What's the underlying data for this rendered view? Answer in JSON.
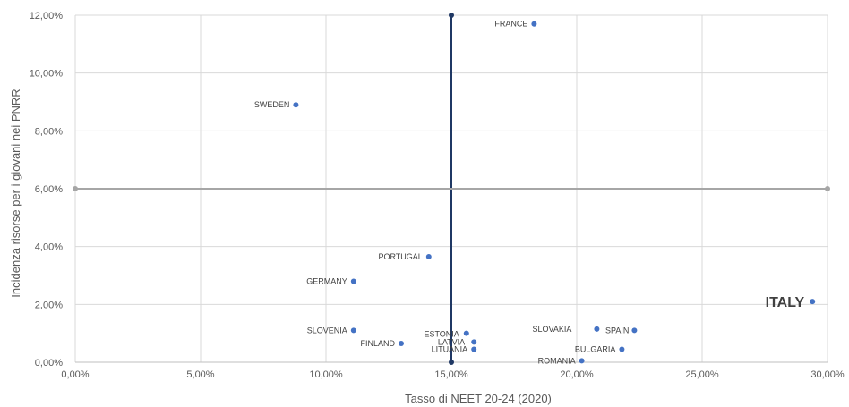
{
  "chart_data": {
    "type": "scatter",
    "xlabel": "Tasso di  NEET 20-24 (2020)",
    "ylabel": "Incidenza risorse per i giovani nei PNRR",
    "xlim": [
      0,
      30
    ],
    "ylim": [
      0,
      12
    ],
    "x_ticks": [
      0,
      5,
      10,
      15,
      20,
      25,
      30
    ],
    "y_ticks": [
      0,
      2,
      4,
      6,
      8,
      10,
      12
    ],
    "x_tick_labels": [
      "0,00%",
      "5,00%",
      "10,00%",
      "15,00%",
      "20,00%",
      "25,00%",
      "30,00%"
    ],
    "y_tick_labels": [
      "0,00%",
      "2,00%",
      "4,00%",
      "6,00%",
      "8,00%",
      "10,00%",
      "12,00%"
    ],
    "grid": true,
    "point_color": "#4472c4",
    "points": [
      {
        "label": "FRANCE",
        "x": 18.3,
        "y": 11.7
      },
      {
        "label": "SWEDEN",
        "x": 8.8,
        "y": 8.9
      },
      {
        "label": "PORTUGAL",
        "x": 14.1,
        "y": 3.65
      },
      {
        "label": "GERMANY",
        "x": 11.1,
        "y": 2.8
      },
      {
        "label": "ITALY",
        "x": 29.4,
        "y": 2.1,
        "emphasis": true
      },
      {
        "label": "SLOVENIA",
        "x": 11.1,
        "y": 1.1
      },
      {
        "label": "SLOVAKIA",
        "x": 20.8,
        "y": 1.15
      },
      {
        "label": "SPAIN",
        "x": 22.3,
        "y": 1.1
      },
      {
        "label": "ESTONIA",
        "x": 15.6,
        "y": 1.0
      },
      {
        "label": "LATVIA",
        "x": 15.9,
        "y": 0.7
      },
      {
        "label": "LITUANIA",
        "x": 15.9,
        "y": 0.45
      },
      {
        "label": "FINLAND",
        "x": 13.0,
        "y": 0.65
      },
      {
        "label": "BULGARIA",
        "x": 21.8,
        "y": 0.45
      },
      {
        "label": "ROMANIA",
        "x": 20.2,
        "y": 0.05
      }
    ],
    "reference_lines": [
      {
        "orientation": "vertical",
        "x": 15,
        "y_from": 0,
        "y_to": 12,
        "color": "#1f3864"
      },
      {
        "orientation": "horizontal",
        "y": 6,
        "x_from": 0,
        "x_to": 30,
        "color": "#a6a6a6"
      }
    ]
  }
}
